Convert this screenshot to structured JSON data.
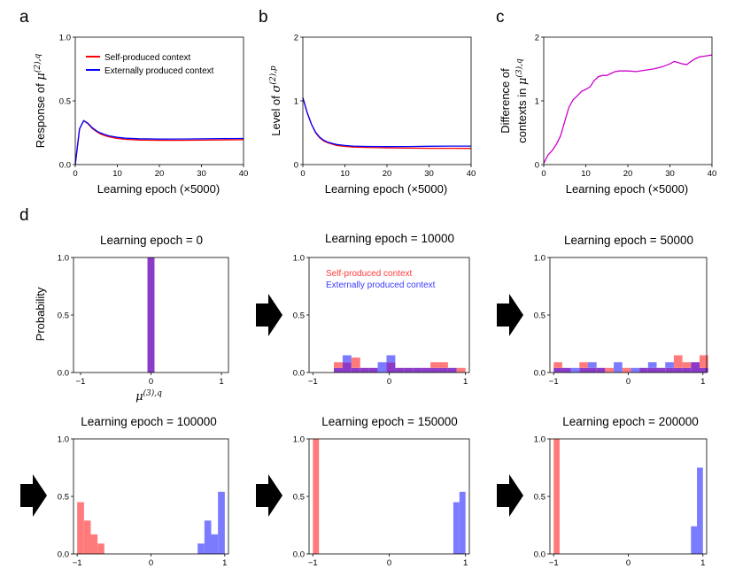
{
  "panel_labels": {
    "a": "a",
    "b": "b",
    "c": "c",
    "d": "d"
  },
  "colors": {
    "self": "#ff0000",
    "external": "#0000ff",
    "diff": "#cc00cc",
    "self_bar": "#ff7b7b",
    "ext_bar": "#7b7bff",
    "overlap_bar": "#8a3cc8"
  },
  "chart_data": [
    {
      "id": "a",
      "type": "line",
      "xlabel": "Learning epoch (×5000)",
      "ylabel_prefix": "Response of ",
      "ylabel_symbol": "μ",
      "ylabel_sup": "(2),q",
      "xlim": [
        0,
        40
      ],
      "ylim": [
        0,
        1
      ],
      "xticks": [
        0,
        10,
        20,
        30,
        40
      ],
      "yticks": [
        0.0,
        0.5,
        1.0
      ],
      "xtick_labels": [
        "0",
        "10",
        "20",
        "30",
        "40"
      ],
      "ytick_labels": [
        "0.0",
        "0.5",
        "1.0"
      ],
      "legend": [
        "Self-produced context",
        "Externally produced context"
      ],
      "series": [
        {
          "name": "Self-produced context",
          "color": "#ff0000",
          "x": [
            0,
            1,
            2,
            3,
            4,
            5,
            6,
            7,
            8,
            10,
            12,
            15,
            20,
            25,
            30,
            35,
            40
          ],
          "y": [
            0.0,
            0.28,
            0.345,
            0.32,
            0.285,
            0.26,
            0.24,
            0.228,
            0.218,
            0.205,
            0.198,
            0.193,
            0.19,
            0.19,
            0.192,
            0.194,
            0.195
          ]
        },
        {
          "name": "Externally produced context",
          "color": "#0000ff",
          "x": [
            0,
            1,
            2,
            3,
            4,
            5,
            6,
            7,
            8,
            10,
            12,
            15,
            20,
            25,
            30,
            35,
            40
          ],
          "y": [
            0.0,
            0.28,
            0.345,
            0.325,
            0.29,
            0.265,
            0.248,
            0.236,
            0.226,
            0.214,
            0.207,
            0.203,
            0.2,
            0.201,
            0.202,
            0.204,
            0.205
          ]
        }
      ]
    },
    {
      "id": "b",
      "type": "line",
      "xlabel": "Learning epoch (×5000)",
      "ylabel_prefix": "Level of ",
      "ylabel_symbol": "σ",
      "ylabel_sup": "(2),p",
      "xlim": [
        0,
        40
      ],
      "ylim": [
        0,
        2
      ],
      "xticks": [
        0,
        10,
        20,
        30,
        40
      ],
      "yticks": [
        0,
        1,
        2
      ],
      "xtick_labels": [
        "0",
        "10",
        "20",
        "30",
        "40"
      ],
      "ytick_labels": [
        "0",
        "1",
        "2"
      ],
      "series": [
        {
          "name": "Self-produced context",
          "color": "#ff0000",
          "x": [
            0,
            1,
            2,
            3,
            4,
            5,
            6,
            8,
            10,
            12,
            15,
            20,
            25,
            30,
            35,
            40
          ],
          "y": [
            1.05,
            0.82,
            0.64,
            0.5,
            0.42,
            0.37,
            0.34,
            0.3,
            0.285,
            0.275,
            0.27,
            0.262,
            0.258,
            0.256,
            0.255,
            0.254
          ]
        },
        {
          "name": "Externally produced context",
          "color": "#0000ff",
          "x": [
            0,
            1,
            2,
            3,
            4,
            5,
            6,
            8,
            10,
            12,
            15,
            20,
            25,
            30,
            35,
            40
          ],
          "y": [
            1.05,
            0.82,
            0.64,
            0.51,
            0.43,
            0.38,
            0.35,
            0.315,
            0.3,
            0.29,
            0.285,
            0.282,
            0.283,
            0.288,
            0.29,
            0.29
          ]
        }
      ]
    },
    {
      "id": "c",
      "type": "line",
      "xlabel": "Learning epoch (×5000)",
      "ylabel_line1": "Difference of",
      "ylabel_prefix": "contexts in ",
      "ylabel_symbol": "μ",
      "ylabel_sup": "(3),q",
      "xlim": [
        0,
        40
      ],
      "ylim": [
        0,
        2
      ],
      "xticks": [
        0,
        10,
        20,
        30,
        40
      ],
      "yticks": [
        0,
        1,
        2
      ],
      "xtick_labels": [
        "0",
        "10",
        "20",
        "30",
        "40"
      ],
      "ytick_labels": [
        "0",
        "1",
        "2"
      ],
      "series": [
        {
          "name": "Difference",
          "color": "#cc00cc",
          "x": [
            0,
            1,
            2,
            3,
            4,
            5,
            6,
            7,
            8,
            9,
            10,
            11,
            12,
            13,
            14,
            15,
            16,
            17,
            18,
            19,
            20,
            22,
            24,
            26,
            28,
            30,
            31,
            32,
            33,
            34,
            35,
            36,
            37,
            38,
            39,
            40
          ],
          "y": [
            0.02,
            0.15,
            0.22,
            0.32,
            0.45,
            0.68,
            0.9,
            1.02,
            1.08,
            1.15,
            1.18,
            1.22,
            1.32,
            1.38,
            1.4,
            1.4,
            1.43,
            1.46,
            1.47,
            1.47,
            1.47,
            1.46,
            1.48,
            1.5,
            1.53,
            1.58,
            1.62,
            1.6,
            1.58,
            1.57,
            1.62,
            1.66,
            1.69,
            1.7,
            1.71,
            1.72
          ]
        }
      ]
    },
    {
      "id": "d0",
      "type": "bar",
      "title": "Learning epoch = 0",
      "xlabel_symbol": "μ",
      "xlabel_sup": "(3),q",
      "ylabel": "Probability",
      "xlim": [
        -1.1,
        1.1
      ],
      "ylim": [
        0,
        1
      ],
      "xticks": [
        -1,
        0,
        1
      ],
      "xtick_labels": [
        "−1",
        "0",
        "1"
      ],
      "yticks": [
        0.0,
        0.5,
        1.0
      ],
      "ytick_labels": [
        "0.0",
        "0.5",
        "1.0"
      ],
      "bin_width": 0.1,
      "series": [
        {
          "name": "Self-produced context",
          "bins": [
            -0.05
          ],
          "values": [
            1.0
          ]
        },
        {
          "name": "Externally produced context",
          "bins": [
            -0.05
          ],
          "values": [
            1.0
          ]
        }
      ]
    },
    {
      "id": "d1",
      "type": "bar",
      "title": "Learning epoch = 10000",
      "legend": [
        "Self-produced context",
        "Externally produced context"
      ],
      "xlim": [
        -1.05,
        1.05
      ],
      "ylim": [
        0,
        1
      ],
      "xticks": [
        -1,
        0,
        1
      ],
      "xtick_labels": [
        "−1",
        "0",
        "1"
      ],
      "yticks": [
        0.0,
        0.5,
        1.0
      ],
      "ytick_labels": [
        "0.0",
        "0.5",
        "1.0"
      ],
      "bin_width": 0.115,
      "series": [
        {
          "name": "Self-produced context",
          "bins": [
            -0.725,
            -0.61,
            -0.495,
            -0.38,
            -0.265,
            -0.15,
            -0.035,
            0.08,
            0.195,
            0.31,
            0.425,
            0.54,
            0.655,
            0.77,
            0.885
          ],
          "values": [
            0.09,
            0.09,
            0.13,
            0.04,
            0.04,
            0.0,
            0.09,
            0.04,
            0.04,
            0.04,
            0.04,
            0.09,
            0.09,
            0.04,
            0.04
          ]
        },
        {
          "name": "Externally produced context",
          "bins": [
            -0.725,
            -0.61,
            -0.495,
            -0.38,
            -0.265,
            -0.15,
            -0.035,
            0.08,
            0.195,
            0.31,
            0.425,
            0.54,
            0.655,
            0.77,
            0.885
          ],
          "values": [
            0.04,
            0.15,
            0.04,
            0.04,
            0.04,
            0.09,
            0.15,
            0.04,
            0.04,
            0.04,
            0.04,
            0.04,
            0.04,
            0.04,
            0.0
          ]
        }
      ]
    },
    {
      "id": "d2",
      "type": "bar",
      "title": "Learning epoch = 50000",
      "xlim": [
        -1.05,
        1.05
      ],
      "ylim": [
        0,
        1
      ],
      "xticks": [
        -1,
        0,
        1
      ],
      "xtick_labels": [
        "−1",
        "0",
        "1"
      ],
      "yticks": [
        0.0,
        0.5,
        1.0
      ],
      "ytick_labels": [
        "0.0",
        "0.5",
        "1.0"
      ],
      "bin_width": 0.115,
      "series": [
        {
          "name": "Self-produced context",
          "bins": [
            -1.0,
            -0.885,
            -0.77,
            -0.655,
            -0.54,
            -0.425,
            -0.31,
            -0.195,
            -0.08,
            0.035,
            0.15,
            0.265,
            0.38,
            0.495,
            0.61,
            0.725,
            0.84,
            0.955
          ],
          "values": [
            0.09,
            0.04,
            0.0,
            0.09,
            0.04,
            0.04,
            0.04,
            0.0,
            0.04,
            0.0,
            0.04,
            0.04,
            0.04,
            0.04,
            0.15,
            0.09,
            0.09,
            0.15
          ]
        },
        {
          "name": "Externally produced context",
          "bins": [
            -1.0,
            -0.885,
            -0.77,
            -0.655,
            -0.54,
            -0.425,
            -0.31,
            -0.195,
            -0.08,
            0.035,
            0.15,
            0.265,
            0.38,
            0.495,
            0.61,
            0.725,
            0.84,
            0.955
          ],
          "values": [
            0.04,
            0.04,
            0.04,
            0.04,
            0.09,
            0.04,
            0.0,
            0.09,
            0.0,
            0.04,
            0.04,
            0.09,
            0.04,
            0.09,
            0.04,
            0.04,
            0.09,
            0.04
          ]
        }
      ]
    },
    {
      "id": "d3",
      "type": "bar",
      "title": "Learning epoch = 100000",
      "xlim": [
        -1.05,
        1.05
      ],
      "ylim": [
        0,
        1
      ],
      "xticks": [
        -1,
        0,
        1
      ],
      "xtick_labels": [
        "−1",
        "0",
        "1"
      ],
      "yticks": [
        0.0,
        0.5,
        1.0
      ],
      "ytick_labels": [
        "0.0",
        "0.5",
        "1.0"
      ],
      "bin_width": 0.092,
      "series": [
        {
          "name": "Self-produced context",
          "bins": [
            -1.0,
            -0.908,
            -0.816,
            -0.724
          ],
          "values": [
            0.45,
            0.29,
            0.17,
            0.09
          ]
        },
        {
          "name": "Externally produced context",
          "bins": [
            0.632,
            0.724,
            0.816,
            0.908
          ],
          "values": [
            0.09,
            0.29,
            0.17,
            0.54
          ]
        }
      ]
    },
    {
      "id": "d4",
      "type": "bar",
      "title": "Learning epoch = 150000",
      "xlim": [
        -1.05,
        1.05
      ],
      "ylim": [
        0,
        1
      ],
      "xticks": [
        -1,
        0,
        1
      ],
      "xtick_labels": [
        "−1",
        "0",
        "1"
      ],
      "yticks": [
        0.0,
        0.5,
        1.0
      ],
      "ytick_labels": [
        "0.0",
        "0.5",
        "1.0"
      ],
      "bin_width": 0.08,
      "series": [
        {
          "name": "Self-produced context",
          "bins": [
            -1.0
          ],
          "values": [
            1.0
          ]
        },
        {
          "name": "Externally produced context",
          "bins": [
            0.84,
            0.92
          ],
          "values": [
            0.45,
            0.54
          ]
        }
      ]
    },
    {
      "id": "d5",
      "type": "bar",
      "title": "Learning epoch = 200000",
      "xlim": [
        -1.05,
        1.05
      ],
      "ylim": [
        0,
        1
      ],
      "xticks": [
        -1,
        0,
        1
      ],
      "xtick_labels": [
        "−1",
        "0",
        "1"
      ],
      "yticks": [
        0.0,
        0.5,
        1.0
      ],
      "ytick_labels": [
        "0.0",
        "0.5",
        "1.0"
      ],
      "bin_width": 0.08,
      "series": [
        {
          "name": "Self-produced context",
          "bins": [
            -1.0
          ],
          "values": [
            1.0
          ]
        },
        {
          "name": "Externally produced context",
          "bins": [
            0.84,
            0.92
          ],
          "values": [
            0.24,
            0.75
          ]
        }
      ]
    }
  ]
}
